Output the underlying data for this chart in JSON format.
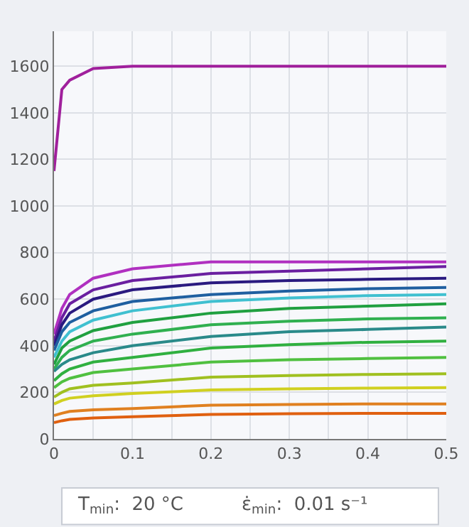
{
  "chart_data": {
    "type": "line",
    "x": [
      0,
      0.01,
      0.02,
      0.05,
      0.1,
      0.2,
      0.3,
      0.4,
      0.5
    ],
    "xlim": [
      0,
      0.5
    ],
    "xticks": [
      0,
      0.1,
      0.2,
      0.3,
      0.4,
      0.5
    ],
    "ylim": [
      0,
      1750
    ],
    "yticks": [
      0,
      200,
      400,
      600,
      800,
      1000,
      1200,
      1400,
      1600
    ],
    "grid": true,
    "marker": "none",
    "line_style": "solid",
    "annotations": [
      "T$_{min}$:  20 °C",
      "ε̇$_{min}$:  0.01 s⁻¹"
    ],
    "series": [
      {
        "color": "#a0209c",
        "values": [
          1150,
          1500,
          1540,
          1590,
          1600,
          1600,
          1600,
          1600,
          1600
        ]
      },
      {
        "color": "#b030c0",
        "values": [
          450,
          560,
          620,
          690,
          730,
          760,
          760,
          760,
          760
        ]
      },
      {
        "color": "#6a1fa0",
        "values": [
          420,
          520,
          580,
          640,
          680,
          710,
          720,
          730,
          740
        ]
      },
      {
        "color": "#2a1a80",
        "values": [
          400,
          490,
          540,
          600,
          640,
          670,
          680,
          685,
          690
        ]
      },
      {
        "color": "#1f5fa0",
        "values": [
          380,
          460,
          500,
          550,
          590,
          620,
          635,
          645,
          650
        ]
      },
      {
        "color": "#40c0d0",
        "values": [
          350,
          420,
          460,
          510,
          550,
          590,
          605,
          615,
          620
        ]
      },
      {
        "color": "#20a040",
        "values": [
          320,
          390,
          420,
          465,
          500,
          540,
          560,
          570,
          580
        ]
      },
      {
        "color": "#30b050",
        "values": [
          300,
          350,
          380,
          420,
          450,
          490,
          505,
          515,
          520
        ]
      },
      {
        "color": "#2a8a8a",
        "values": [
          290,
          320,
          340,
          370,
          400,
          440,
          460,
          470,
          480
        ]
      },
      {
        "color": "#30b040",
        "values": [
          250,
          280,
          300,
          330,
          350,
          390,
          405,
          415,
          420
        ]
      },
      {
        "color": "#50c040",
        "values": [
          220,
          245,
          260,
          285,
          300,
          330,
          340,
          345,
          350
        ]
      },
      {
        "color": "#a0c020",
        "values": [
          180,
          200,
          215,
          230,
          240,
          265,
          272,
          277,
          280
        ]
      },
      {
        "color": "#d0d020",
        "values": [
          150,
          165,
          175,
          185,
          195,
          210,
          215,
          218,
          220
        ]
      },
      {
        "color": "#e08020",
        "values": [
          100,
          110,
          118,
          125,
          130,
          145,
          148,
          150,
          150
        ]
      },
      {
        "color": "#e06010",
        "values": [
          70,
          78,
          84,
          90,
          95,
          105,
          108,
          110,
          110
        ]
      }
    ]
  }
}
